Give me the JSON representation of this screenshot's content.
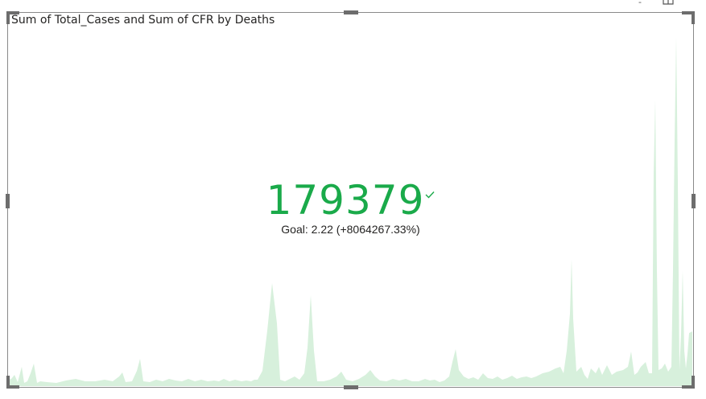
{
  "visual": {
    "title": "Sum of Total_Cases and Sum of CFR by Deaths",
    "kpi_value": "179379",
    "goal_text": "Goal: 2.22 (+8064267.33%)",
    "status_icon": "checkmark-icon",
    "accent_color": "#1aaa4a",
    "trend_fill_color": "#d7f0dc"
  },
  "header_icons": [
    "filter-icon",
    "focus-mode-icon"
  ]
}
